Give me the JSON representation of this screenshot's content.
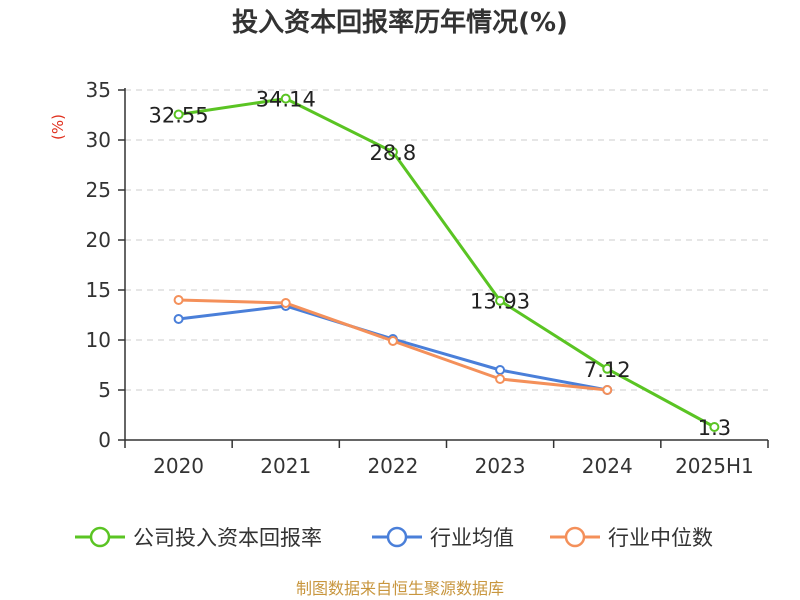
{
  "chart_data": {
    "type": "line",
    "title": "投入资本回报率历年情况(%)",
    "ylabel": "(%)",
    "categories": [
      "2020",
      "2021",
      "2022",
      "2023",
      "2024",
      "2025H1"
    ],
    "ylim": [
      0,
      35
    ],
    "yticks": [
      0,
      5,
      10,
      15,
      20,
      25,
      30,
      35
    ],
    "grid": true,
    "legend_position": "bottom",
    "series": [
      {
        "name": "公司投入资本回报率",
        "color": "#5ac423",
        "values": [
          32.55,
          34.14,
          28.8,
          13.93,
          7.12,
          1.3
        ],
        "labels": [
          "32.55",
          "34.14",
          "28.8",
          "13.93",
          "7.12",
          "1.3"
        ]
      },
      {
        "name": "行业均值",
        "color": "#4a7fd9",
        "values": [
          12.1,
          13.4,
          10.1,
          7.0,
          5.0,
          null
        ]
      },
      {
        "name": "行业中位数",
        "color": "#f4905a",
        "values": [
          14.0,
          13.7,
          9.9,
          6.1,
          5.0,
          null
        ]
      }
    ],
    "source": "制图数据来自恒生聚源数据库"
  }
}
